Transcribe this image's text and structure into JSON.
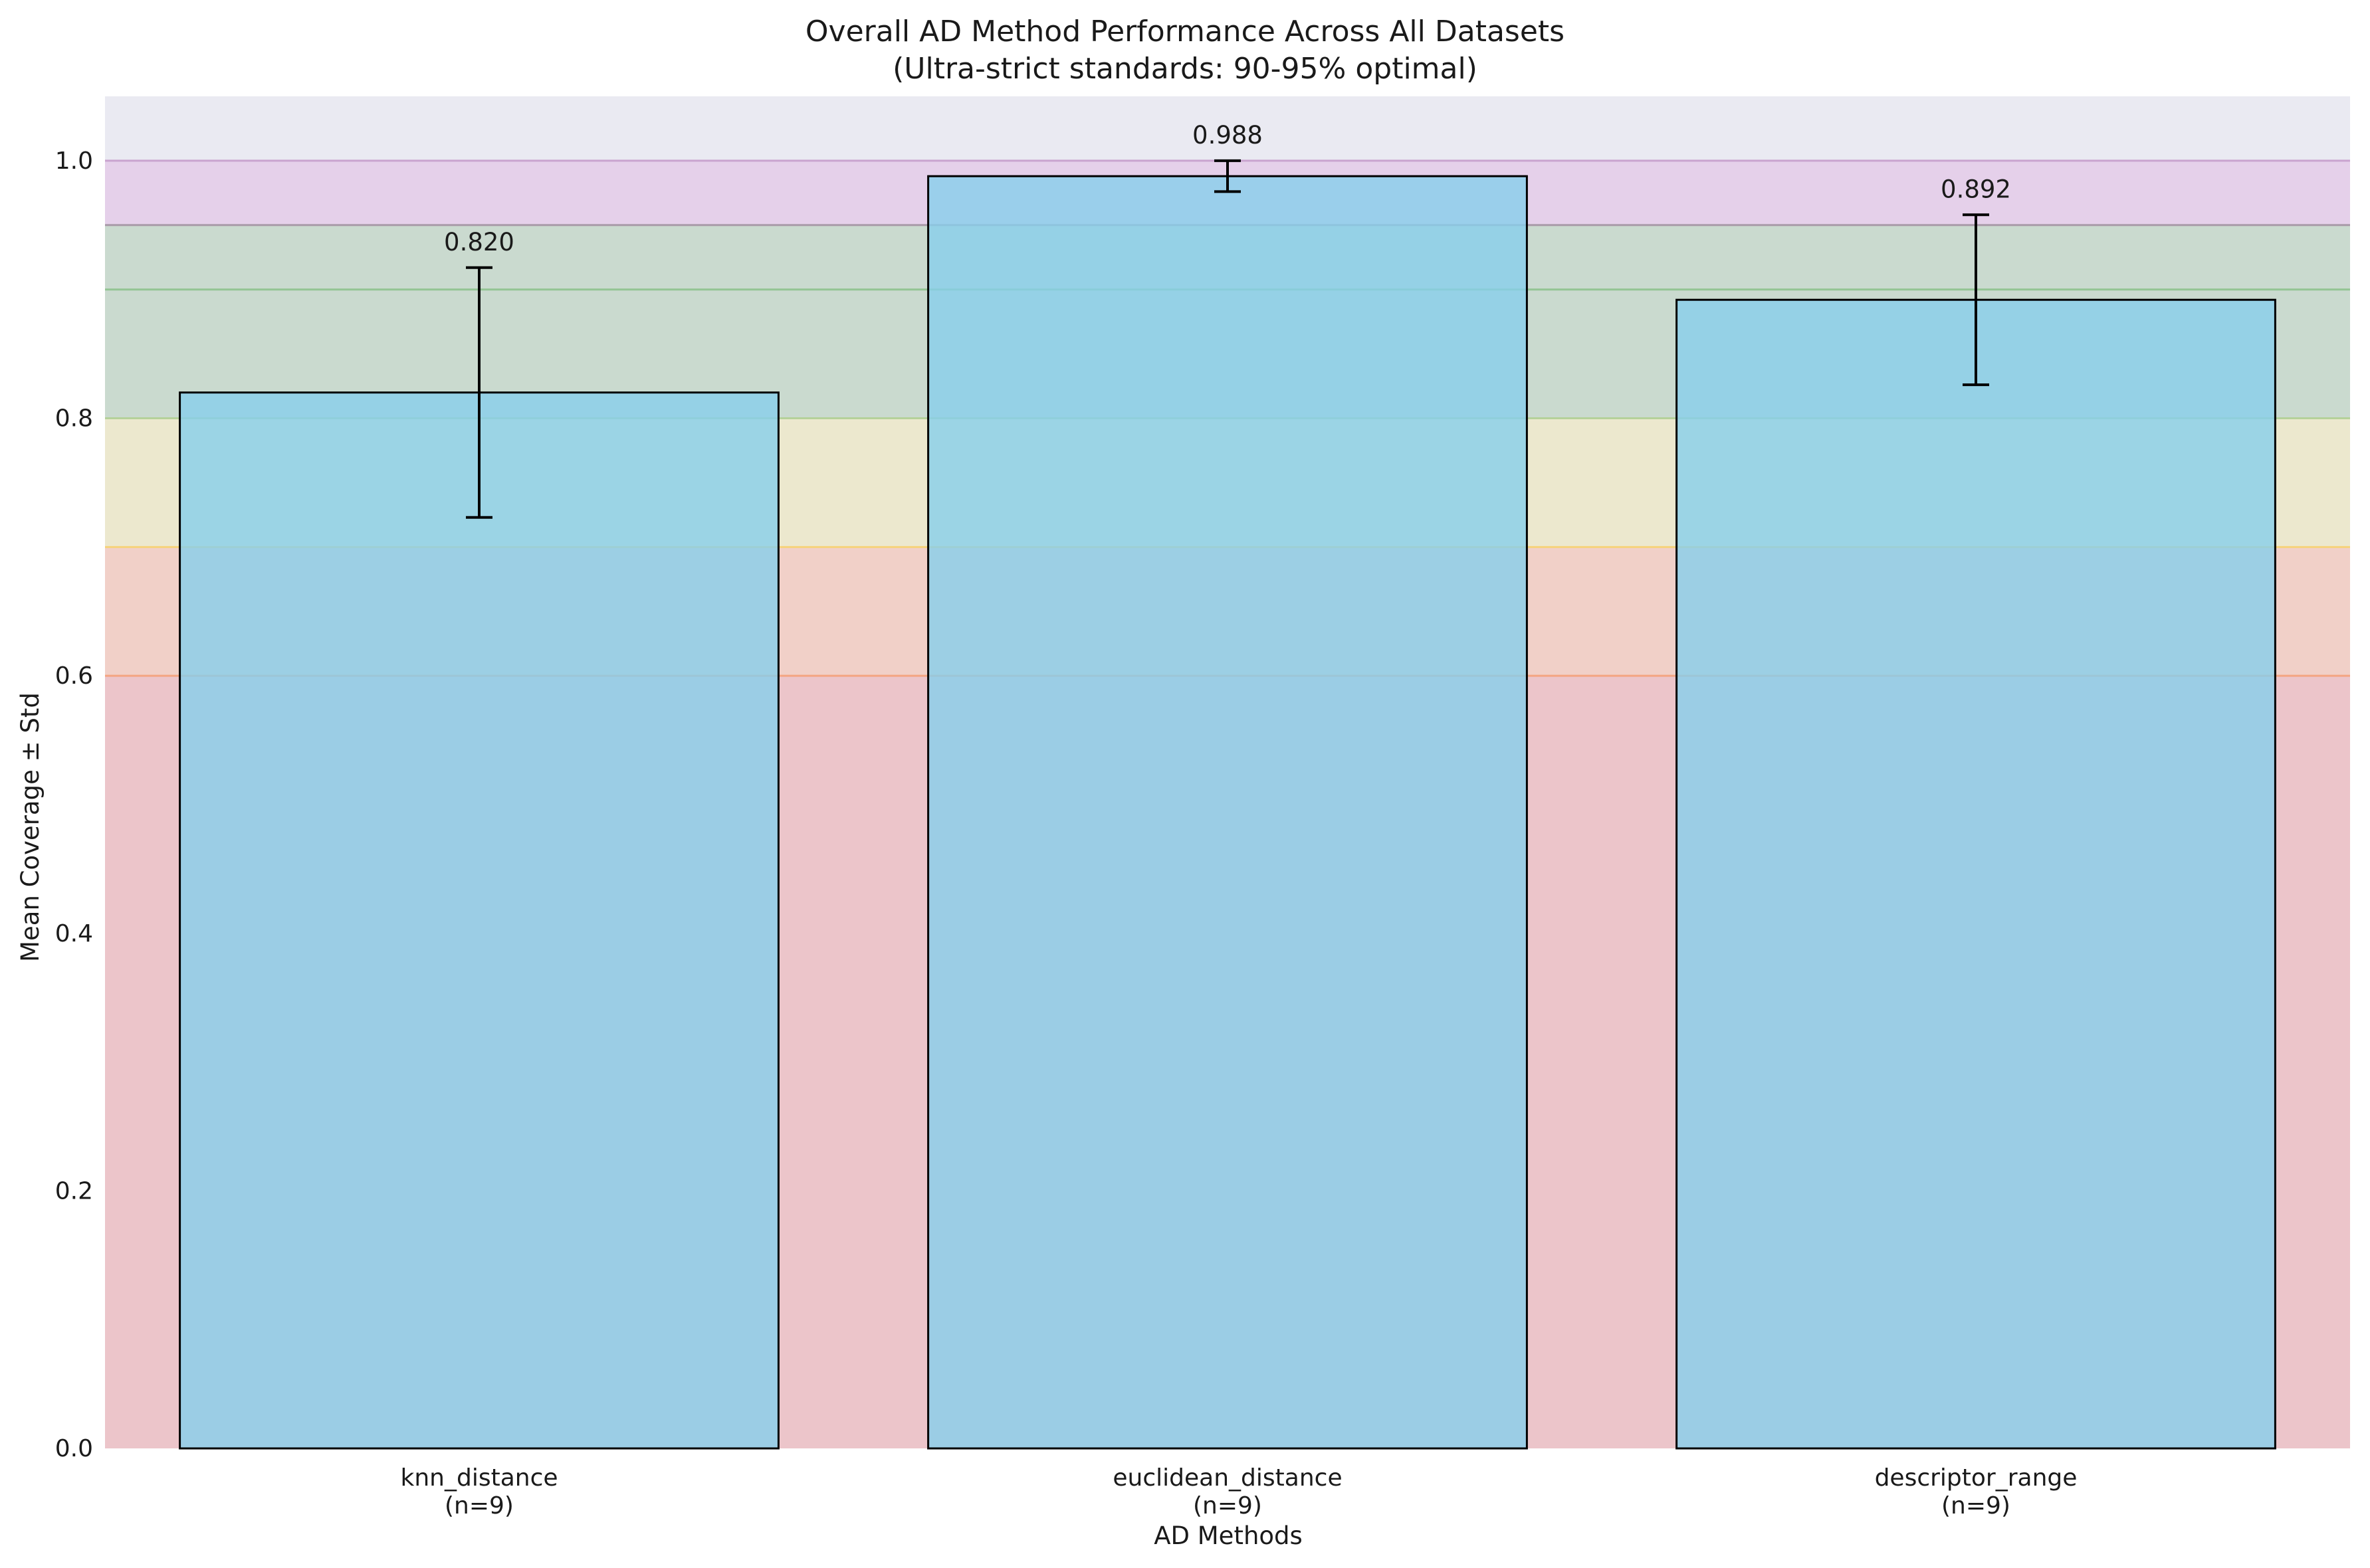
{
  "chart_data": {
    "type": "bar",
    "title": "Overall AD Method Performance Across All Datasets",
    "subtitle": "(Ultra-strict standards: 90-95% optimal)",
    "xlabel": "AD Methods",
    "ylabel": "Mean Coverage ± Std",
    "categories": [
      {
        "name": "knn_distance",
        "n_label": "(n=9)"
      },
      {
        "name": "euclidean_distance",
        "n_label": "(n=9)"
      },
      {
        "name": "descriptor_range",
        "n_label": "(n=9)"
      }
    ],
    "values": [
      0.82,
      0.988,
      0.892
    ],
    "errors": [
      0.097,
      0.012,
      0.066
    ],
    "value_labels": [
      "0.820",
      "0.988",
      "0.892"
    ],
    "ylim": [
      0.0,
      1.05
    ],
    "yticks": [
      "0.0",
      "0.2",
      "0.4",
      "0.6",
      "0.8",
      "1.0"
    ],
    "grid": false,
    "bar_color": "#87CEEB",
    "bar_edge_color": "#000000",
    "plot_background": "#EAEAF2",
    "bands": [
      {
        "from": 0.0,
        "to": 0.6,
        "color": "#F08080"
      },
      {
        "from": 0.6,
        "to": 0.7,
        "color": "#FFA07A"
      },
      {
        "from": 0.7,
        "to": 0.8,
        "color": "#F0E68C"
      },
      {
        "from": 0.8,
        "to": 0.9,
        "color": "#90BE90"
      },
      {
        "from": 0.9,
        "to": 0.95,
        "color": "#8FBC8F"
      },
      {
        "from": 0.95,
        "to": 1.0,
        "color": "#DDA0DD"
      }
    ],
    "band_lines": [
      {
        "y": 0.6,
        "color": "#F4A582"
      },
      {
        "y": 0.7,
        "color": "#F6D27A"
      },
      {
        "y": 0.8,
        "color": "#B5D19A"
      },
      {
        "y": 0.9,
        "color": "#93C493"
      },
      {
        "y": 0.95,
        "color": "#A89AA8"
      },
      {
        "y": 1.0,
        "color": "#C9A3CF"
      }
    ]
  }
}
